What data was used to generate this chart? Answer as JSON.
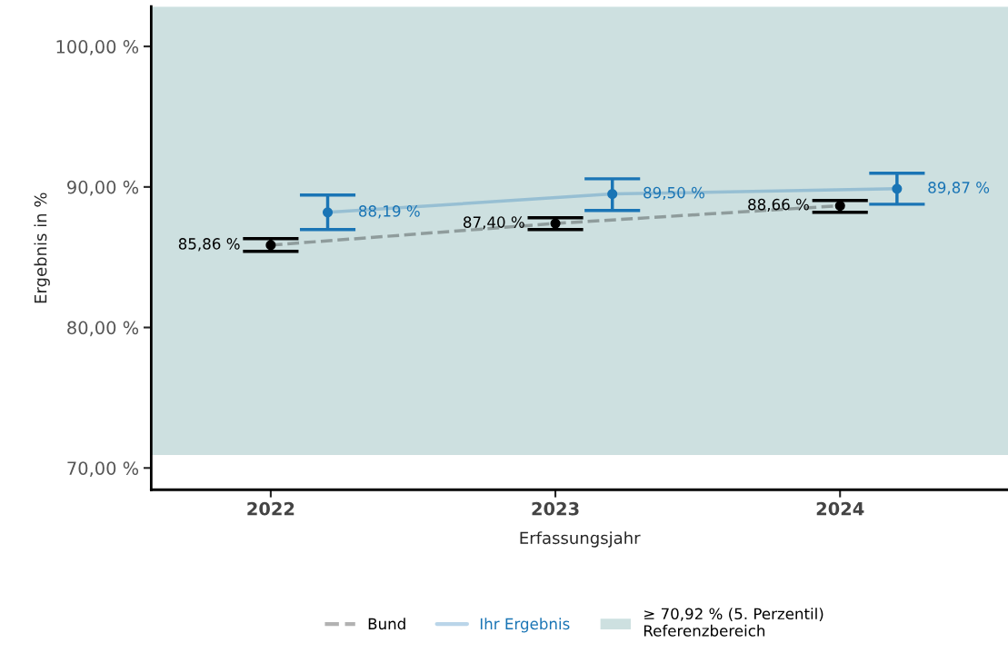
{
  "chart_data": {
    "type": "line",
    "xlabel": "Erfassungsjahr",
    "ylabel": "Ergebnis in %",
    "xlim": [
      2021.58,
      2024.59
    ],
    "xticks": [
      2022,
      2023,
      2024
    ],
    "ylim": [
      68.45,
      102.84
    ],
    "yticks": [
      {
        "value": 70,
        "label": "70,00 %"
      },
      {
        "value": 80,
        "label": "80,00 %"
      },
      {
        "value": 90,
        "label": "90,00 %"
      },
      {
        "value": 100,
        "label": "100,00 %"
      }
    ],
    "series": [
      {
        "name": "Bund",
        "color": "#000000",
        "line_style": "dashed",
        "x": [
          2022,
          2023,
          2024
        ],
        "values": [
          85.86,
          87.4,
          88.66
        ],
        "errors": [
          [
            85.42,
            86.32
          ],
          [
            86.97,
            87.81
          ],
          [
            88.19,
            89.03
          ]
        ],
        "value_labels": [
          "85,86 %",
          "87,40 %",
          "88,66 %"
        ]
      },
      {
        "name": "Ihr Ergebnis",
        "color": "#1a75b5",
        "line_style": "solid",
        "x": [
          2022.2,
          2023.2,
          2024.2
        ],
        "values": [
          88.19,
          89.5,
          89.87
        ],
        "errors": [
          [
            86.97,
            89.42
          ],
          [
            88.32,
            90.58
          ],
          [
            88.77,
            90.97
          ]
        ],
        "value_labels": [
          "88,19 %",
          "89,50 %",
          "89,87 %"
        ]
      }
    ],
    "bands": [
      {
        "axis": "y",
        "from": 70.92,
        "to": 102.84,
        "label": "≥ 70,92 % (5. Perzentil)\nReferenzbereich",
        "color": "#cde0e0"
      }
    ],
    "marker": "circle",
    "grid": false,
    "legend": "bottom"
  }
}
